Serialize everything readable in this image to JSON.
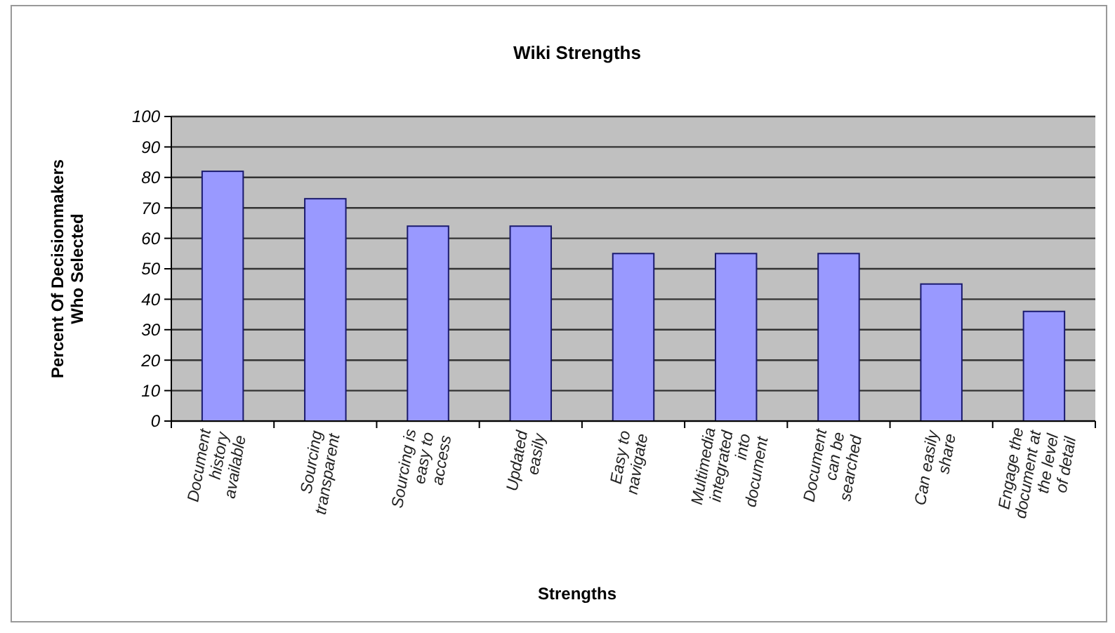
{
  "chart_data": {
    "type": "bar",
    "title": "Wiki Strengths",
    "xlabel": "Strengths",
    "ylabel": "Percent Of Decisionmakers Who Selected",
    "categories": [
      "Document history available",
      "Sourcing transparent",
      "Sourcing is easy to access",
      "Updated easily",
      "Easy to navigate",
      "Multimedia integrated into document",
      "Document can be searched",
      "Can easily share",
      "Engage the document at the level of detail"
    ],
    "values": [
      82,
      73,
      64,
      64,
      55,
      55,
      55,
      45,
      36
    ],
    "color": "#9999ff",
    "ylim": [
      0,
      100
    ],
    "yticks": [
      0,
      10,
      20,
      30,
      40,
      50,
      60,
      70,
      80,
      90,
      100
    ],
    "grid": "y"
  }
}
